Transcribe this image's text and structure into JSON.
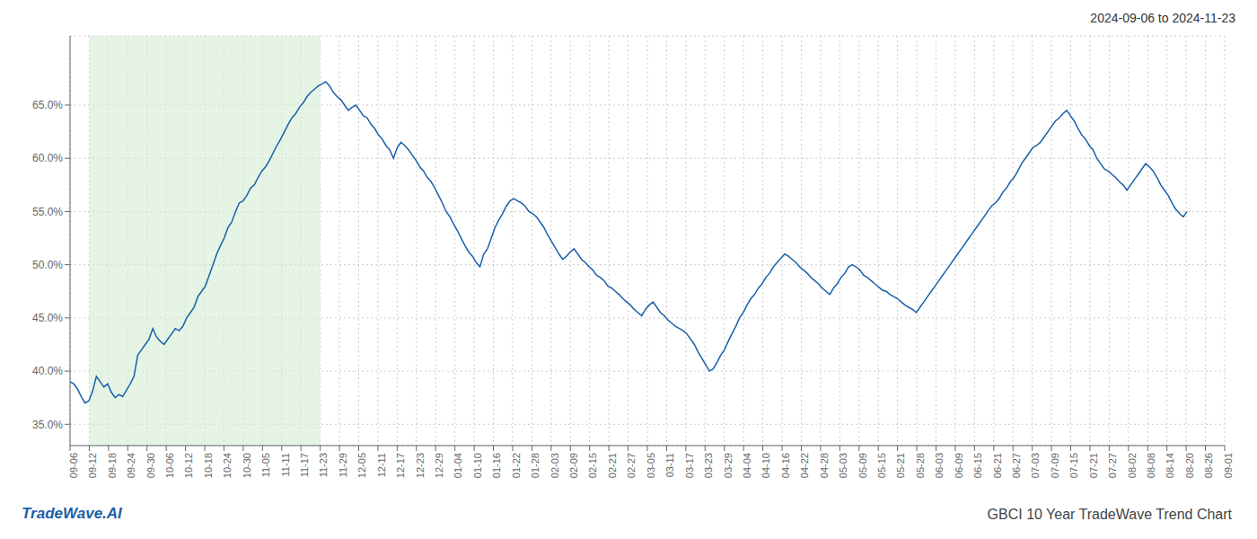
{
  "chart_data": {
    "type": "line",
    "title": "2024-09-06 to 2024-11-23",
    "annotations": [
      "TradeWave.AI",
      "GBCI 10 Year TradeWave Trend Chart"
    ],
    "color": "#1a5fa8",
    "grid": true,
    "xlim": [
      0,
      307
    ],
    "xticks": [
      {
        "value": 0,
        "label": "09-06"
      },
      {
        "value": 5.116667,
        "label": "09-12"
      },
      {
        "value": 10.233333,
        "label": "09-18"
      },
      {
        "value": 15.35,
        "label": "09-24"
      },
      {
        "value": 20.466667,
        "label": "09-30"
      },
      {
        "value": 25.583333,
        "label": "10-06"
      },
      {
        "value": 30.7,
        "label": "10-12"
      },
      {
        "value": 35.816667,
        "label": "10-18"
      },
      {
        "value": 40.933333,
        "label": "10-24"
      },
      {
        "value": 46.05,
        "label": "10-30"
      },
      {
        "value": 51.166667,
        "label": "11-05"
      },
      {
        "value": 56.283333,
        "label": "11-11"
      },
      {
        "value": 61.4,
        "label": "11-17"
      },
      {
        "value": 66.516667,
        "label": "11-23"
      },
      {
        "value": 71.633333,
        "label": "11-29"
      },
      {
        "value": 76.75,
        "label": "12-05"
      },
      {
        "value": 81.866667,
        "label": "12-11"
      },
      {
        "value": 86.983333,
        "label": "12-17"
      },
      {
        "value": 92.1,
        "label": "12-23"
      },
      {
        "value": 97.216667,
        "label": "12-29"
      },
      {
        "value": 102.333333,
        "label": "01-04"
      },
      {
        "value": 107.45,
        "label": "01-10"
      },
      {
        "value": 112.566667,
        "label": "01-16"
      },
      {
        "value": 117.683333,
        "label": "01-22"
      },
      {
        "value": 122.8,
        "label": "01-28"
      },
      {
        "value": 127.916667,
        "label": "02-03"
      },
      {
        "value": 133.033333,
        "label": "02-09"
      },
      {
        "value": 138.15,
        "label": "02-15"
      },
      {
        "value": 143.266667,
        "label": "02-21"
      },
      {
        "value": 148.383333,
        "label": "02-27"
      },
      {
        "value": 153.5,
        "label": "03-05"
      },
      {
        "value": 158.616667,
        "label": "03-11"
      },
      {
        "value": 163.733333,
        "label": "03-17"
      },
      {
        "value": 168.85,
        "label": "03-23"
      },
      {
        "value": 173.966667,
        "label": "03-29"
      },
      {
        "value": 179.083333,
        "label": "04-04"
      },
      {
        "value": 184.2,
        "label": "04-10"
      },
      {
        "value": 189.316667,
        "label": "04-16"
      },
      {
        "value": 194.433333,
        "label": "04-22"
      },
      {
        "value": 199.55,
        "label": "04-28"
      },
      {
        "value": 204.666667,
        "label": "05-03"
      },
      {
        "value": 209.783333,
        "label": "05-09"
      },
      {
        "value": 214.9,
        "label": "05-15"
      },
      {
        "value": 220.016667,
        "label": "05-21"
      },
      {
        "value": 225.133333,
        "label": "05-28"
      },
      {
        "value": 230.25,
        "label": "06-03"
      },
      {
        "value": 235.366667,
        "label": "06-09"
      },
      {
        "value": 240.483333,
        "label": "06-15"
      },
      {
        "value": 245.6,
        "label": "06-21"
      },
      {
        "value": 250.716667,
        "label": "06-27"
      },
      {
        "value": 255.833333,
        "label": "07-03"
      },
      {
        "value": 260.95,
        "label": "07-09"
      },
      {
        "value": 266.066667,
        "label": "07-15"
      },
      {
        "value": 271.183333,
        "label": "07-21"
      },
      {
        "value": 276.3,
        "label": "07-27"
      },
      {
        "value": 281.416667,
        "label": "08-02"
      },
      {
        "value": 286.533333,
        "label": "08-08"
      },
      {
        "value": 291.65,
        "label": "08-14"
      },
      {
        "value": 296.766667,
        "label": "08-20"
      },
      {
        "value": 301.883333,
        "label": "08-26"
      },
      {
        "value": 307,
        "label": "09-01"
      }
    ],
    "ylim": [
      0.33,
      0.715
    ],
    "yticks": [
      {
        "value": 0.35,
        "label": "35.0%"
      },
      {
        "value": 0.4,
        "label": "40.0%"
      },
      {
        "value": 0.45,
        "label": "45.0%"
      },
      {
        "value": 0.5,
        "label": "50.0%"
      },
      {
        "value": 0.55,
        "label": "55.0%"
      },
      {
        "value": 0.6,
        "label": "60.0%"
      },
      {
        "value": 0.65,
        "label": "65.0%"
      }
    ],
    "shade": {
      "x": [
        5.116667,
        66.516667
      ],
      "color": "#d4ecd4"
    },
    "values": [
      0.39,
      0.388,
      0.383,
      0.376,
      0.37,
      0.372,
      0.381,
      0.395,
      0.39,
      0.385,
      0.388,
      0.38,
      0.375,
      0.378,
      0.376,
      0.382,
      0.388,
      0.395,
      0.415,
      0.42,
      0.425,
      0.43,
      0.44,
      0.432,
      0.428,
      0.425,
      0.43,
      0.435,
      0.44,
      0.438,
      0.442,
      0.45,
      0.455,
      0.46,
      0.47,
      0.475,
      0.48,
      0.49,
      0.5,
      0.51,
      0.518,
      0.525,
      0.535,
      0.54,
      0.55,
      0.558,
      0.56,
      0.565,
      0.572,
      0.575,
      0.582,
      0.588,
      0.592,
      0.598,
      0.605,
      0.612,
      0.618,
      0.625,
      0.632,
      0.638,
      0.642,
      0.648,
      0.652,
      0.658,
      0.662,
      0.665,
      0.668,
      0.67,
      0.672,
      0.668,
      0.662,
      0.658,
      0.655,
      0.65,
      0.645,
      0.648,
      0.65,
      0.645,
      0.64,
      0.638,
      0.632,
      0.628,
      0.622,
      0.618,
      0.612,
      0.608,
      0.6,
      0.61,
      0.615,
      0.612,
      0.608,
      0.603,
      0.598,
      0.592,
      0.588,
      0.582,
      0.578,
      0.572,
      0.565,
      0.558,
      0.55,
      0.545,
      0.538,
      0.532,
      0.525,
      0.518,
      0.512,
      0.508,
      0.502,
      0.498,
      0.51,
      0.515,
      0.525,
      0.535,
      0.542,
      0.548,
      0.555,
      0.56,
      0.562,
      0.56,
      0.558,
      0.555,
      0.55,
      0.548,
      0.545,
      0.54,
      0.535,
      0.528,
      0.522,
      0.516,
      0.51,
      0.505,
      0.508,
      0.512,
      0.515,
      0.51,
      0.505,
      0.502,
      0.498,
      0.495,
      0.49,
      0.488,
      0.485,
      0.48,
      0.478,
      0.475,
      0.472,
      0.468,
      0.465,
      0.462,
      0.458,
      0.455,
      0.452,
      0.458,
      0.462,
      0.465,
      0.46,
      0.455,
      0.452,
      0.448,
      0.445,
      0.442,
      0.44,
      0.438,
      0.435,
      0.43,
      0.425,
      0.418,
      0.412,
      0.406,
      0.4,
      0.402,
      0.408,
      0.415,
      0.42,
      0.428,
      0.435,
      0.442,
      0.45,
      0.455,
      0.462,
      0.468,
      0.472,
      0.478,
      0.482,
      0.488,
      0.492,
      0.498,
      0.502,
      0.506,
      0.51,
      0.508,
      0.505,
      0.502,
      0.498,
      0.495,
      0.492,
      0.488,
      0.485,
      0.482,
      0.478,
      0.475,
      0.472,
      0.478,
      0.482,
      0.488,
      0.492,
      0.498,
      0.5,
      0.498,
      0.495,
      0.49,
      0.488,
      0.485,
      0.482,
      0.479,
      0.476,
      0.475,
      0.472,
      0.47,
      0.468,
      0.465,
      0.462,
      0.46,
      0.458,
      0.455,
      0.46,
      0.465,
      0.47,
      0.475,
      0.48,
      0.485,
      0.49,
      0.495,
      0.5,
      0.505,
      0.51,
      0.515,
      0.52,
      0.525,
      0.53,
      0.535,
      0.54,
      0.545,
      0.55,
      0.555,
      0.558,
      0.562,
      0.568,
      0.572,
      0.578,
      0.582,
      0.588,
      0.595,
      0.6,
      0.605,
      0.61,
      0.612,
      0.615,
      0.62,
      0.625,
      0.63,
      0.635,
      0.638,
      0.642,
      0.645,
      0.64,
      0.635,
      0.628,
      0.622,
      0.618,
      0.612,
      0.608,
      0.6,
      0.595,
      0.59,
      0.588,
      0.585,
      0.582,
      0.578,
      0.575,
      0.57,
      0.575,
      0.58,
      0.585,
      0.59,
      0.595,
      0.592,
      0.588,
      0.582,
      0.575,
      0.57,
      0.565,
      0.558,
      0.552,
      0.548,
      0.545,
      0.55
    ]
  }
}
